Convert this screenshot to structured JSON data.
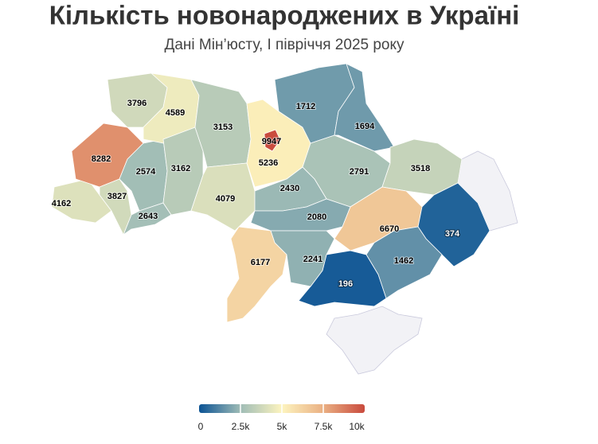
{
  "chart_data": {
    "type": "choropleth",
    "title": "Кількість новонароджених в Україні",
    "subtitle": "Дані Мін’юсту, І півріччя 2025 року",
    "values": [
      4162,
      8282,
      3827,
      2574,
      2643,
      3796,
      4589,
      3162,
      3153,
      4079,
      5236,
      9947,
      1712,
      1694,
      2791,
      3518,
      2430,
      2080,
      6670,
      374,
      1462,
      196,
      2241,
      6177
    ],
    "colorscale": [
      "#0b5394",
      "#9fbcb6",
      "#fdf4bf",
      "#eab083",
      "#c94a3d"
    ],
    "clim": [
      0,
      10000
    ],
    "cticks": [
      0,
      {
        "value": 2500,
        "label": "2.5k"
      },
      {
        "value": 5000,
        "label": "5k"
      },
      {
        "value": 7500,
        "label": "7.5k"
      },
      {
        "value": 10000,
        "label": "10k"
      }
    ]
  }
}
